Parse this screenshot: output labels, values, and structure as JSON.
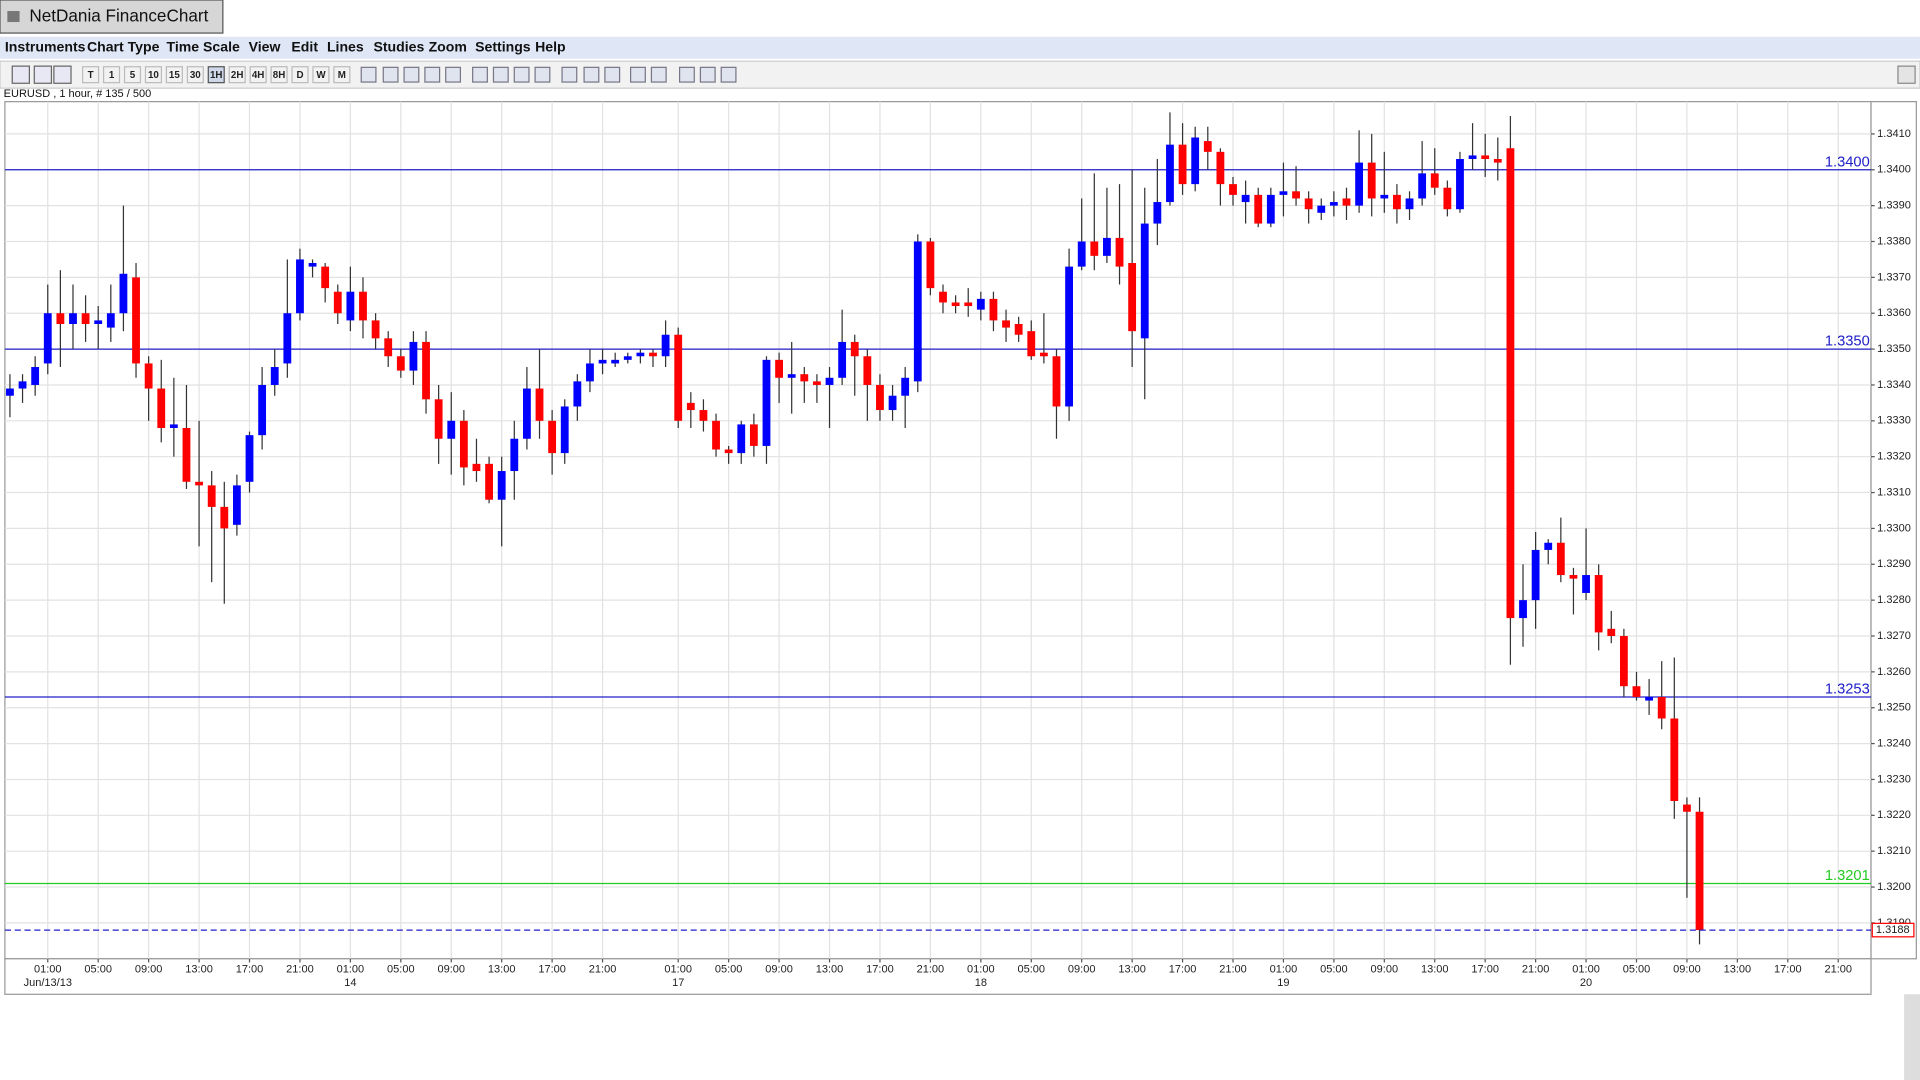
{
  "app": {
    "title": "NetDania FinanceChart",
    "menu": [
      "Instruments",
      "Chart Type",
      "Time Scale",
      "View",
      "Edit",
      "Lines",
      "Studies",
      "Zoom",
      "Settings",
      "Help"
    ],
    "toolbar": [
      "T",
      "1",
      "5",
      "10",
      "15",
      "30",
      "1H",
      "2H",
      "4H",
      "8H",
      "D",
      "W",
      "M"
    ],
    "info": "EURUSD , 1 hour, # 135 / 500"
  },
  "chart_data": {
    "type": "candlestick",
    "up_color": "#0000ff",
    "down_color": "#ff0000",
    "grid": true,
    "open": [
      1.3337,
      1.3339,
      1.334,
      1.3346,
      1.336,
      1.3357,
      1.336,
      1.3357,
      1.3356,
      1.336,
      1.337,
      1.3346,
      1.3339,
      1.3328,
      1.3328,
      1.3313,
      1.3312,
      1.3306,
      1.3301,
      1.3313,
      1.3326,
      1.334,
      1.3346,
      1.336,
      1.3373,
      1.3373,
      1.3366,
      1.3358,
      1.3366,
      1.3358,
      1.3353,
      1.3348,
      1.3344,
      1.3352,
      1.3336,
      1.3325,
      1.333,
      1.3318,
      1.3318,
      1.3308,
      1.3316,
      1.3325,
      1.3339,
      1.333,
      1.3321,
      1.3334,
      1.3341,
      1.3346,
      1.3346,
      1.3347,
      1.3348,
      1.3349,
      1.3348,
      1.3354,
      1.3335,
      1.3333,
      1.333,
      1.3322,
      1.3321,
      1.3329,
      1.3323,
      1.3347,
      1.3342,
      1.3343,
      1.3341,
      1.334,
      1.3342,
      1.3352,
      1.3348,
      1.334,
      1.3333,
      1.3337,
      1.3341,
      1.338,
      1.3366,
      1.3363,
      1.3363,
      1.3361,
      1.3364,
      1.3358,
      1.3357,
      1.3355,
      1.3349,
      1.3348,
      1.3334,
      1.3373,
      1.338,
      1.3376,
      1.3381,
      1.3374,
      1.3353,
      1.3385,
      1.3391,
      1.3407,
      1.3396,
      1.3408,
      1.3405,
      1.3396,
      1.3391,
      1.3393,
      1.3385,
      1.3393,
      1.3394,
      1.3392,
      1.3388,
      1.339,
      1.3392,
      1.339,
      1.3402,
      1.3392,
      1.3393,
      1.3389,
      1.3392,
      1.3399,
      1.3395,
      1.3389,
      1.3403,
      1.3404,
      1.3403,
      1.3406,
      1.3275,
      1.328,
      1.3294,
      1.3296,
      1.3287,
      1.3282,
      1.3287,
      1.3272,
      1.327,
      1.3256,
      1.3252,
      1.3253,
      1.3247,
      1.3223,
      1.3221
    ],
    "high": [
      1.3343,
      1.3343,
      1.3348,
      1.3368,
      1.3372,
      1.3368,
      1.3365,
      1.3362,
      1.3368,
      1.339,
      1.3374,
      1.3348,
      1.3347,
      1.3342,
      1.334,
      1.333,
      1.3316,
      1.3313,
      1.3315,
      1.3327,
      1.3345,
      1.335,
      1.3375,
      1.3378,
      1.3375,
      1.3374,
      1.3368,
      1.3373,
      1.337,
      1.336,
      1.3355,
      1.335,
      1.3355,
      1.3355,
      1.334,
      1.3338,
      1.3333,
      1.3325,
      1.332,
      1.332,
      1.333,
      1.3345,
      1.335,
      1.3333,
      1.3336,
      1.3343,
      1.335,
      1.335,
      1.3349,
      1.3349,
      1.335,
      1.335,
      1.3358,
      1.3356,
      1.3338,
      1.3336,
      1.3332,
      1.3323,
      1.333,
      1.3332,
      1.3348,
      1.3349,
      1.3352,
      1.3345,
      1.3343,
      1.3345,
      1.3361,
      1.3354,
      1.335,
      1.3343,
      1.334,
      1.3345,
      1.3382,
      1.3381,
      1.3368,
      1.3365,
      1.3367,
      1.3366,
      1.3366,
      1.3361,
      1.3359,
      1.3358,
      1.336,
      1.335,
      1.3378,
      1.3392,
      1.3399,
      1.3395,
      1.3396,
      1.34,
      1.3395,
      1.3403,
      1.3416,
      1.3413,
      1.3412,
      1.3412,
      1.3406,
      1.3398,
      1.3397,
      1.3395,
      1.3395,
      1.3402,
      1.3401,
      1.3394,
      1.3392,
      1.3394,
      1.3395,
      1.3411,
      1.341,
      1.3405,
      1.3396,
      1.3394,
      1.3408,
      1.3406,
      1.3397,
      1.3405,
      1.3413,
      1.341,
      1.3409,
      1.3415,
      1.329,
      1.3299,
      1.3297,
      1.3303,
      1.3289,
      1.33,
      1.329,
      1.3277,
      1.3272,
      1.326,
      1.3258,
      1.3263,
      1.3264,
      1.3225,
      1.3225
    ],
    "low": [
      1.3331,
      1.3335,
      1.3337,
      1.3343,
      1.3345,
      1.335,
      1.3352,
      1.335,
      1.3352,
      1.3355,
      1.3342,
      1.333,
      1.3324,
      1.332,
      1.3311,
      1.3295,
      1.3285,
      1.3279,
      1.3298,
      1.331,
      1.3322,
      1.3337,
      1.3342,
      1.3358,
      1.337,
      1.3363,
      1.3357,
      1.3355,
      1.3353,
      1.335,
      1.3345,
      1.3342,
      1.334,
      1.3332,
      1.3318,
      1.3315,
      1.3312,
      1.3313,
      1.3307,
      1.3295,
      1.3308,
      1.3322,
      1.3325,
      1.3315,
      1.3318,
      1.333,
      1.3338,
      1.3343,
      1.3345,
      1.3346,
      1.3346,
      1.3345,
      1.3345,
      1.3328,
      1.3328,
      1.3327,
      1.332,
      1.3318,
      1.3318,
      1.332,
      1.3318,
      1.3335,
      1.3332,
      1.3335,
      1.3335,
      1.3328,
      1.334,
      1.3337,
      1.333,
      1.333,
      1.333,
      1.3328,
      1.3338,
      1.3365,
      1.336,
      1.336,
      1.3359,
      1.3358,
      1.3355,
      1.3352,
      1.3352,
      1.3347,
      1.3346,
      1.3325,
      1.333,
      1.3372,
      1.3372,
      1.3374,
      1.3368,
      1.3345,
      1.3336,
      1.3379,
      1.339,
      1.3393,
      1.3394,
      1.34,
      1.339,
      1.339,
      1.3385,
      1.3384,
      1.3384,
      1.3387,
      1.339,
      1.3385,
      1.3386,
      1.3387,
      1.3386,
      1.3388,
      1.3387,
      1.3388,
      1.3385,
      1.3386,
      1.339,
      1.3393,
      1.3387,
      1.3388,
      1.34,
      1.3398,
      1.3397,
      1.3262,
      1.3267,
      1.3272,
      1.329,
      1.3285,
      1.3276,
      1.328,
      1.3266,
      1.3268,
      1.3253,
      1.3252,
      1.3248,
      1.3244,
      1.3219,
      1.3197,
      1.3184
    ],
    "close": [
      1.3339,
      1.3341,
      1.3345,
      1.336,
      1.3357,
      1.336,
      1.3357,
      1.3358,
      1.336,
      1.3371,
      1.3346,
      1.3339,
      1.3328,
      1.3329,
      1.3313,
      1.3312,
      1.3306,
      1.33,
      1.3312,
      1.3326,
      1.334,
      1.3345,
      1.336,
      1.3375,
      1.3374,
      1.3367,
      1.336,
      1.3366,
      1.3358,
      1.3353,
      1.3348,
      1.3344,
      1.3352,
      1.3336,
      1.3325,
      1.333,
      1.3317,
      1.3316,
      1.3308,
      1.3316,
      1.3325,
      1.3339,
      1.333,
      1.3321,
      1.3334,
      1.3341,
      1.3346,
      1.3347,
      1.3347,
      1.3348,
      1.3349,
      1.3348,
      1.3354,
      1.333,
      1.3333,
      1.333,
      1.3322,
      1.3321,
      1.3329,
      1.3323,
      1.3347,
      1.3342,
      1.3343,
      1.3341,
      1.334,
      1.3342,
      1.3352,
      1.3348,
      1.334,
      1.3333,
      1.3337,
      1.3342,
      1.338,
      1.3367,
      1.3363,
      1.3362,
      1.3362,
      1.3364,
      1.3358,
      1.3356,
      1.3354,
      1.3348,
      1.3348,
      1.3334,
      1.3373,
      1.338,
      1.3376,
      1.3381,
      1.3373,
      1.3355,
      1.3385,
      1.3391,
      1.3407,
      1.3396,
      1.3409,
      1.3405,
      1.3396,
      1.3393,
      1.3393,
      1.3385,
      1.3393,
      1.3394,
      1.3392,
      1.3389,
      1.339,
      1.3391,
      1.339,
      1.3402,
      1.3392,
      1.3393,
      1.3389,
      1.3392,
      1.3399,
      1.3395,
      1.3389,
      1.3403,
      1.3404,
      1.3403,
      1.3402,
      1.3275,
      1.328,
      1.3294,
      1.3296,
      1.3287,
      1.3286,
      1.3287,
      1.3271,
      1.327,
      1.3256,
      1.3253,
      1.3253,
      1.3247,
      1.3224,
      1.3221,
      1.3188
    ],
    "xlim": [
      -0.4,
      147.6
    ],
    "xticks": [
      {
        "value": 3,
        "label": "01:00"
      },
      {
        "value": 7,
        "label": "05:00"
      },
      {
        "value": 11,
        "label": "09:00"
      },
      {
        "value": 15,
        "label": "13:00"
      },
      {
        "value": 19,
        "label": "17:00"
      },
      {
        "value": 23,
        "label": "21:00"
      },
      {
        "value": 27,
        "label": "01:00"
      },
      {
        "value": 31,
        "label": "05:00"
      },
      {
        "value": 35,
        "label": "09:00"
      },
      {
        "value": 39,
        "label": "13:00"
      },
      {
        "value": 43,
        "label": "17:00"
      },
      {
        "value": 47,
        "label": "21:00"
      },
      {
        "value": 53,
        "label": "01:00"
      },
      {
        "value": 57,
        "label": "05:00"
      },
      {
        "value": 61,
        "label": "09:00"
      },
      {
        "value": 65,
        "label": "13:00"
      },
      {
        "value": 69,
        "label": "17:00"
      },
      {
        "value": 73,
        "label": "21:00"
      },
      {
        "value": 77,
        "label": "01:00"
      },
      {
        "value": 81,
        "label": "05:00"
      },
      {
        "value": 85,
        "label": "09:00"
      },
      {
        "value": 89,
        "label": "13:00"
      },
      {
        "value": 93,
        "label": "17:00"
      },
      {
        "value": 97,
        "label": "21:00"
      },
      {
        "value": 101,
        "label": "01:00"
      },
      {
        "value": 105,
        "label": "05:00"
      },
      {
        "value": 109,
        "label": "09:00"
      },
      {
        "value": 113,
        "label": "13:00"
      },
      {
        "value": 117,
        "label": "17:00"
      },
      {
        "value": 121,
        "label": "21:00"
      },
      {
        "value": 125,
        "label": "01:00"
      },
      {
        "value": 129,
        "label": "05:00"
      },
      {
        "value": 133,
        "label": "09:00"
      },
      {
        "value": 137,
        "label": "13:00"
      },
      {
        "value": 141,
        "label": "17:00"
      },
      {
        "value": 145,
        "label": "21:00"
      }
    ],
    "date_ticks": [
      {
        "value": 3,
        "label": "Jun/13/13"
      },
      {
        "value": 27,
        "label": "14"
      },
      {
        "value": 53,
        "label": "17"
      },
      {
        "value": 77,
        "label": "18"
      },
      {
        "value": 101,
        "label": "19"
      },
      {
        "value": 125,
        "label": "20"
      }
    ],
    "ylim": [
      1.318,
      1.3419
    ],
    "yticks": [
      {
        "value": 1.319,
        "label": "1.3190"
      },
      {
        "value": 1.32,
        "label": "1.3200"
      },
      {
        "value": 1.321,
        "label": "1.3210"
      },
      {
        "value": 1.322,
        "label": "1.3220"
      },
      {
        "value": 1.323,
        "label": "1.3230"
      },
      {
        "value": 1.324,
        "label": "1.3240"
      },
      {
        "value": 1.325,
        "label": "1.3250"
      },
      {
        "value": 1.326,
        "label": "1.3260"
      },
      {
        "value": 1.327,
        "label": "1.3270"
      },
      {
        "value": 1.328,
        "label": "1.3280"
      },
      {
        "value": 1.329,
        "label": "1.3290"
      },
      {
        "value": 1.33,
        "label": "1.3300"
      },
      {
        "value": 1.331,
        "label": "1.3310"
      },
      {
        "value": 1.332,
        "label": "1.3320"
      },
      {
        "value": 1.333,
        "label": "1.3330"
      },
      {
        "value": 1.334,
        "label": "1.3340"
      },
      {
        "value": 1.335,
        "label": "1.3350"
      },
      {
        "value": 1.336,
        "label": "1.3360"
      },
      {
        "value": 1.337,
        "label": "1.3370"
      },
      {
        "value": 1.338,
        "label": "1.3380"
      },
      {
        "value": 1.339,
        "label": "1.3390"
      },
      {
        "value": 1.34,
        "label": "1.3400"
      },
      {
        "value": 1.341,
        "label": "1.3410"
      }
    ],
    "hlines": [
      {
        "value": 1.34,
        "label": "1.3400",
        "color": "#2020c8"
      },
      {
        "value": 1.335,
        "label": "1.3350",
        "color": "#2020c8"
      },
      {
        "value": 1.3253,
        "label": "1.3253",
        "color": "#2020c8"
      },
      {
        "value": 1.3201,
        "label": "1.3201",
        "color": "#22cc22"
      }
    ],
    "last_price": {
      "value": 1.3188,
      "label": "1.3188",
      "color": "#ff0000",
      "line_color": "#2020c8"
    }
  }
}
